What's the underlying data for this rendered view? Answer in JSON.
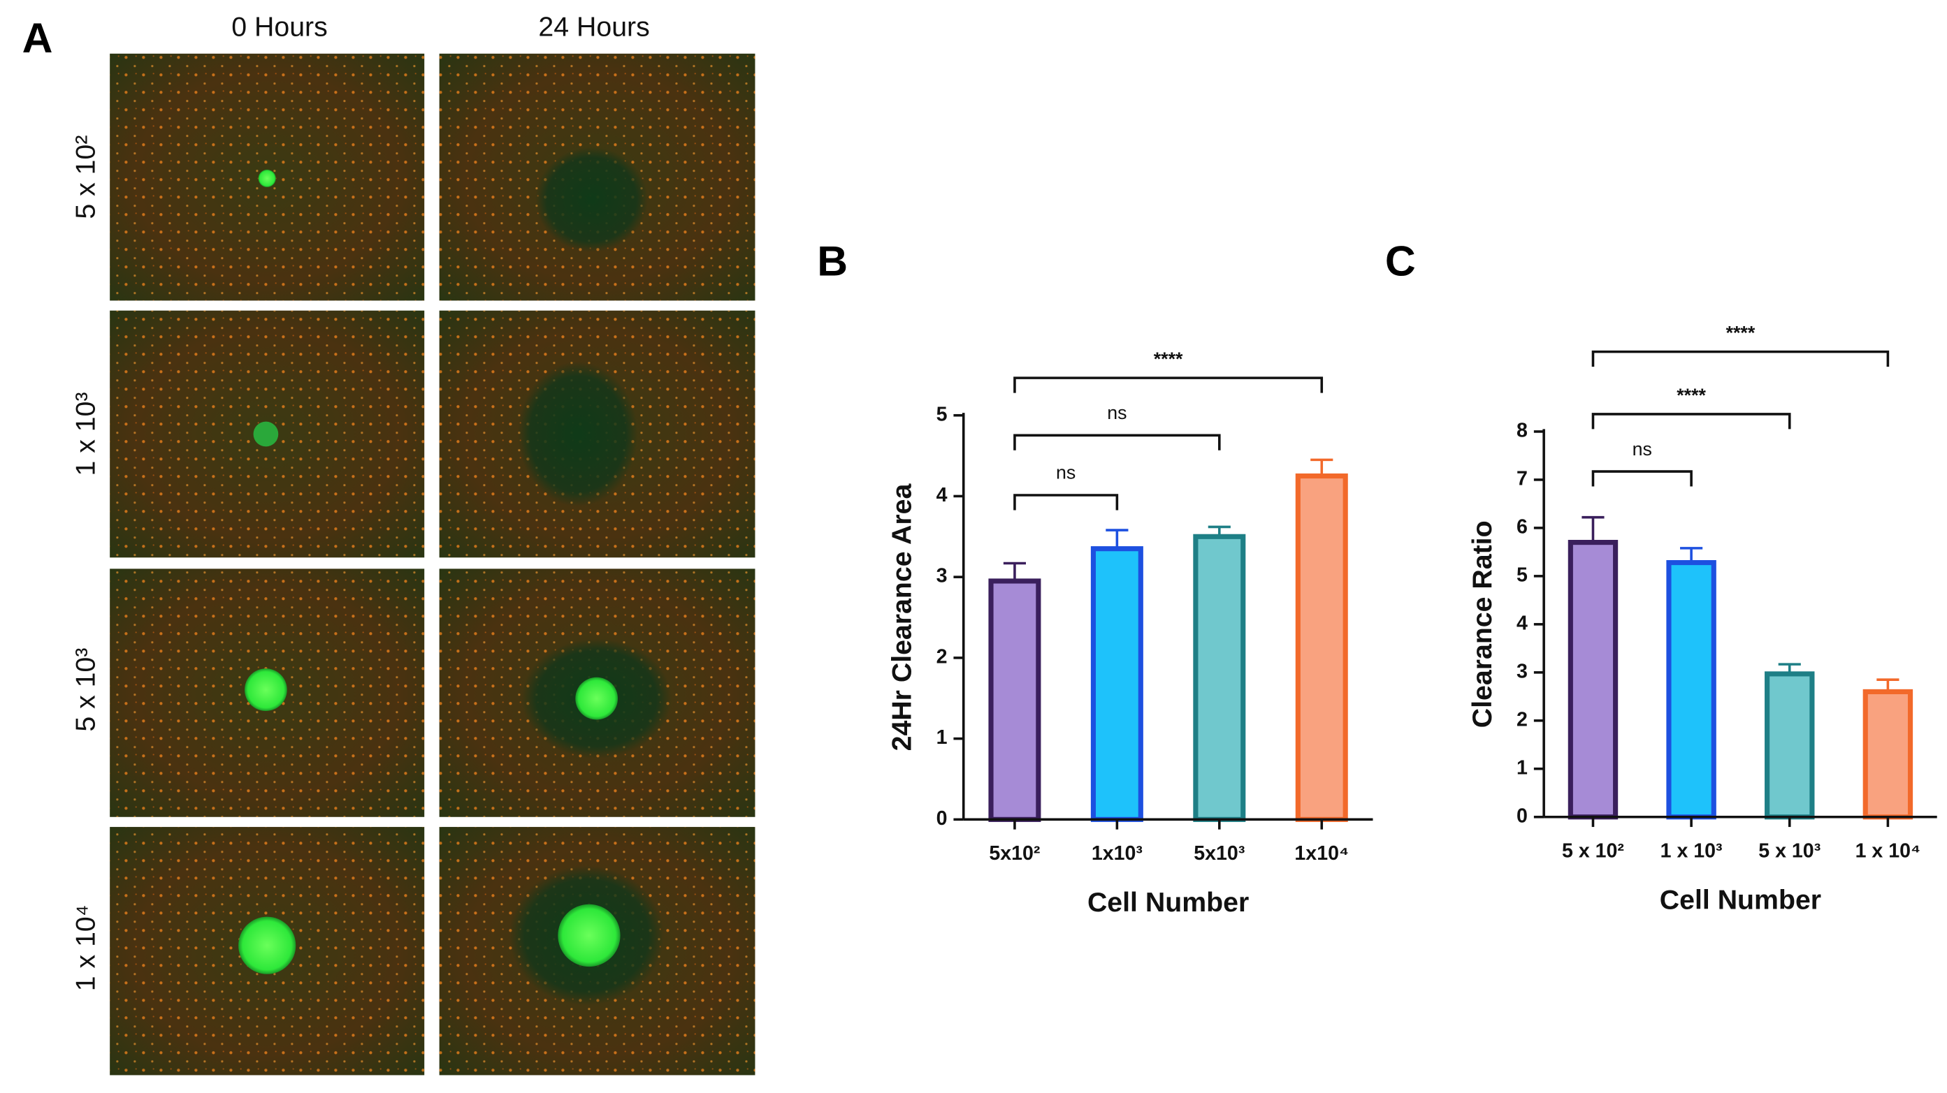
{
  "panel_labels": [
    "A",
    "B",
    "C"
  ],
  "panel_a": {
    "columns": [
      "0 Hours",
      "24 Hours"
    ],
    "rows": [
      "5 x 10²",
      "1 x 10³",
      "5 x 10³",
      "1 x 10⁴"
    ]
  },
  "chart_data": [
    {
      "type": "bar",
      "ylabel": "24Hr Clearance Area",
      "xlabel": "Cell Number",
      "categories": [
        "5x10²",
        "1x10³",
        "5x10³",
        "1x10⁴"
      ],
      "values": [
        2.95,
        3.35,
        3.5,
        4.25
      ],
      "errors": [
        0.22,
        0.23,
        0.12,
        0.2
      ],
      "colors": [
        "#a68bd6",
        "#1ec2fb",
        "#70c8cd",
        "#f9a27f"
      ],
      "edge_colors": [
        "#3a1f5c",
        "#1d50e0",
        "#1e7f86",
        "#f2692a"
      ],
      "ylim": [
        0,
        5
      ],
      "yticks": [
        0,
        1,
        2,
        3,
        4,
        5
      ],
      "annotations": [
        "ns",
        "ns",
        "****"
      ]
    },
    {
      "type": "bar",
      "ylabel": "Clearance Ratio",
      "xlabel": "Cell Number",
      "categories": [
        "5 x 10²",
        "1 x 10³",
        "5 x 10³",
        "1 x 10⁴"
      ],
      "values": [
        5.7,
        5.28,
        2.97,
        2.6
      ],
      "errors": [
        0.52,
        0.3,
        0.2,
        0.25
      ],
      "colors": [
        "#a68bd6",
        "#1ec2fb",
        "#70c8cd",
        "#f9a27f"
      ],
      "edge_colors": [
        "#3a1f5c",
        "#1d50e0",
        "#1e7f86",
        "#f2692a"
      ],
      "ylim": [
        0,
        8
      ],
      "yticks": [
        0,
        1,
        2,
        3,
        4,
        5,
        6,
        7,
        8
      ],
      "annotations": [
        "ns",
        "****",
        "****"
      ]
    }
  ]
}
